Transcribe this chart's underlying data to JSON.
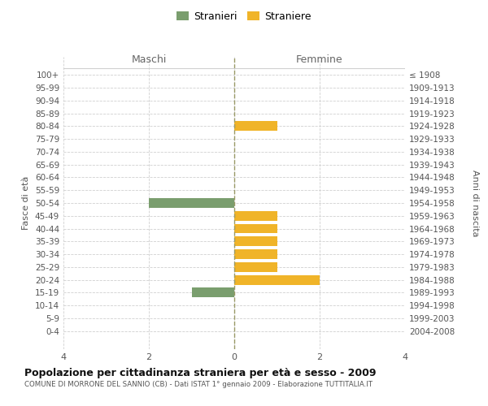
{
  "age_groups": [
    "100+",
    "95-99",
    "90-94",
    "85-89",
    "80-84",
    "75-79",
    "70-74",
    "65-69",
    "60-64",
    "55-59",
    "50-54",
    "45-49",
    "40-44",
    "35-39",
    "30-34",
    "25-29",
    "20-24",
    "15-19",
    "10-14",
    "5-9",
    "0-4"
  ],
  "birth_years": [
    "≤ 1908",
    "1909-1913",
    "1914-1918",
    "1919-1923",
    "1924-1928",
    "1929-1933",
    "1934-1938",
    "1939-1943",
    "1944-1948",
    "1949-1953",
    "1954-1958",
    "1959-1963",
    "1964-1968",
    "1969-1973",
    "1974-1978",
    "1979-1983",
    "1984-1988",
    "1989-1993",
    "1994-1998",
    "1999-2003",
    "2004-2008"
  ],
  "males": [
    0,
    0,
    0,
    0,
    0,
    0,
    0,
    0,
    0,
    0,
    -2,
    0,
    0,
    0,
    0,
    0,
    0,
    -1,
    0,
    0,
    0
  ],
  "females": [
    0,
    0,
    0,
    0,
    1,
    0,
    0,
    0,
    0,
    0,
    0,
    1,
    1,
    1,
    1,
    1,
    2,
    0,
    0,
    0,
    0
  ],
  "male_color": "#7a9e6e",
  "female_color": "#f0b429",
  "xlim": [
    -4,
    4
  ],
  "title": "Popolazione per cittadinanza straniera per età e sesso - 2009",
  "subtitle": "COMUNE DI MORRONE DEL SANNIO (CB) - Dati ISTAT 1° gennaio 2009 - Elaborazione TUTTITALIA.IT",
  "ylabel_left": "Fasce di età",
  "ylabel_right": "Anni di nascita",
  "label_maschi": "Maschi",
  "label_femmine": "Femmine",
  "legend_male": "Stranieri",
  "legend_female": "Straniere",
  "xticks": [
    -4,
    -2,
    0,
    2,
    4
  ],
  "xtick_labels": [
    "4",
    "2",
    "0",
    "2",
    "4"
  ],
  "background_color": "#ffffff",
  "grid_color": "#d0d0d0",
  "bar_height": 0.75
}
